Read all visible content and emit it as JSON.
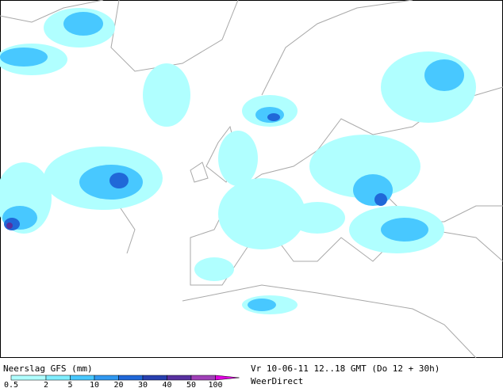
{
  "legend": {
    "title": "Neerslag GFS (mm)",
    "levels": [
      {
        "value": 0.5,
        "color": "#b0ffff"
      },
      {
        "value": 2,
        "color": "#80eeff"
      },
      {
        "value": 5,
        "color": "#48c8ff"
      },
      {
        "value": 10,
        "color": "#3098f0"
      },
      {
        "value": 20,
        "color": "#2068d8"
      },
      {
        "value": 30,
        "color": "#2840b0"
      },
      {
        "value": 40,
        "color": "#5830a0"
      },
      {
        "value": 50,
        "color": "#a040b8"
      },
      {
        "value": 100,
        "color": "#e000e0"
      }
    ]
  },
  "footer": {
    "valid_time": "Vr 10-06-11 12..18 GMT (Do 12 + 30h)",
    "source": "WeerDirect"
  }
}
